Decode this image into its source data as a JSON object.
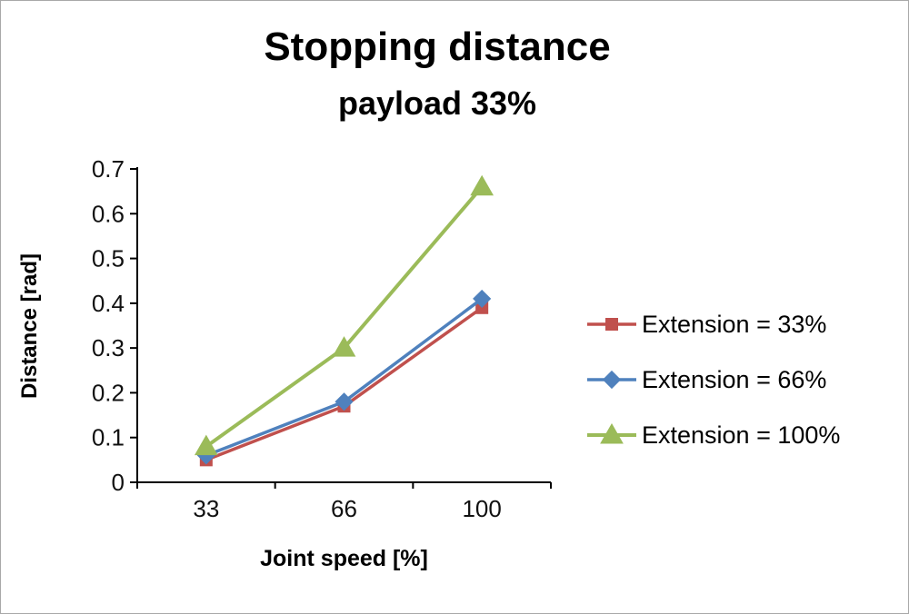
{
  "chart_data": {
    "type": "line",
    "title": "Stopping distance",
    "subtitle": "payload 33%",
    "xlabel": "Joint speed [%]",
    "ylabel": "Distance [rad]",
    "categories": [
      "33",
      "66",
      "100"
    ],
    "ylim": [
      0,
      0.7
    ],
    "ytick_step": 0.1,
    "grid": false,
    "legend_position": "right",
    "axis_color": "#000000",
    "series": [
      {
        "name": "Extension = 33%",
        "marker": "square",
        "color": "#c0504d",
        "values": [
          0.05,
          0.17,
          0.39
        ]
      },
      {
        "name": "Extension = 66%",
        "marker": "diamond",
        "color": "#4f81bd",
        "values": [
          0.06,
          0.18,
          0.41
        ]
      },
      {
        "name": "Extension = 100%",
        "marker": "triangle",
        "color": "#9bbb59",
        "values": [
          0.08,
          0.3,
          0.66
        ]
      }
    ]
  }
}
